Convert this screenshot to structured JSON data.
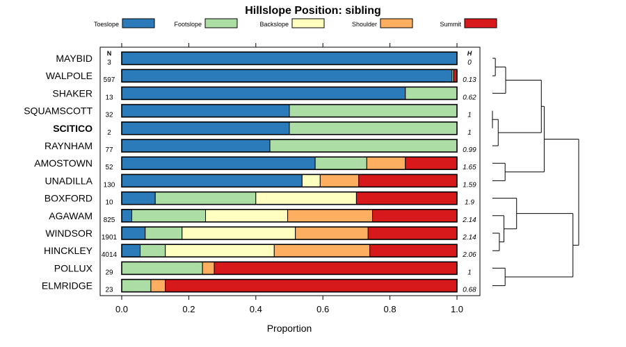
{
  "chart_data": {
    "type": "bar",
    "orientation": "horizontal",
    "stacked": true,
    "title": "Hillslope Position: sibling",
    "xlabel": "Proportion",
    "ylabel": "",
    "xlim": [
      0,
      1
    ],
    "x_ticks": [
      "0.0",
      "0.2",
      "0.4",
      "0.6",
      "0.8",
      "1.0"
    ],
    "n_header": "N",
    "h_header": "H",
    "highlighted_category": "SCITICO",
    "legend": [
      {
        "name": "Toeslope",
        "color": "#2b7bba"
      },
      {
        "name": "Footslope",
        "color": "#abdda4"
      },
      {
        "name": "Backslope",
        "color": "#ffffbf"
      },
      {
        "name": "Shoulder",
        "color": "#fdae61"
      },
      {
        "name": "Summit",
        "color": "#d7191c"
      }
    ],
    "categories": [
      "MAYBID",
      "WALPOLE",
      "SHAKER",
      "SQUAMSCOTT",
      "SCITICO",
      "RAYNHAM",
      "AMOSTOWN",
      "UNADILLA",
      "BOXFORD",
      "AGAWAM",
      "WINDSOR",
      "HINCKLEY",
      "POLLUX",
      "ELMRIDGE"
    ],
    "n": [
      "3",
      "597",
      "13",
      "32",
      "2",
      "77",
      "52",
      "130",
      "10",
      "825",
      "1901",
      "4014",
      "29",
      "23"
    ],
    "h": [
      "0",
      "0.13",
      "0.62",
      "1",
      "1",
      "0.99",
      "1.65",
      "1.59",
      "1.9",
      "2.14",
      "2.14",
      "2.06",
      "1",
      "0.68"
    ],
    "series": [
      {
        "name": "Toeslope",
        "values": [
          1.0,
          0.985,
          0.846,
          0.5,
          0.5,
          0.442,
          0.577,
          0.538,
          0.1,
          0.03,
          0.07,
          0.055,
          0.0,
          0.0
        ]
      },
      {
        "name": "Footslope",
        "values": [
          0.0,
          0.005,
          0.154,
          0.5,
          0.5,
          0.558,
          0.154,
          0.0,
          0.3,
          0.22,
          0.11,
          0.075,
          0.241,
          0.087
        ]
      },
      {
        "name": "Backslope",
        "values": [
          0.0,
          0.0,
          0.0,
          0.0,
          0.0,
          0.0,
          0.0,
          0.054,
          0.3,
          0.245,
          0.338,
          0.325,
          0.0,
          0.0
        ]
      },
      {
        "name": "Shoulder",
        "values": [
          0.0,
          0.0,
          0.0,
          0.0,
          0.0,
          0.0,
          0.115,
          0.115,
          0.0,
          0.253,
          0.217,
          0.285,
          0.035,
          0.043
        ]
      },
      {
        "name": "Summit",
        "values": [
          0.0,
          0.01,
          0.0,
          0.0,
          0.0,
          0.0,
          0.154,
          0.293,
          0.3,
          0.252,
          0.265,
          0.26,
          0.724,
          0.87
        ]
      }
    ],
    "dendrogram": {
      "note": "hierarchical clustering of series rows; leaf indices refer to categories",
      "merges": [
        {
          "left": "leaf:0",
          "right": "leaf:1",
          "height": 0.05
        },
        {
          "left": "leaf:3",
          "right": "leaf:4",
          "height": 0.0
        },
        {
          "left": "m:1",
          "right": "leaf:5",
          "height": 0.1
        },
        {
          "left": "leaf:6",
          "right": "leaf:7",
          "height": 0.22
        },
        {
          "left": "leaf:10",
          "right": "leaf:11",
          "height": 0.12
        },
        {
          "left": "leaf:9",
          "right": "m:4",
          "height": 0.2
        },
        {
          "left": "leaf:12",
          "right": "leaf:13",
          "height": 0.22
        },
        {
          "left": "m:0",
          "right": "leaf:2",
          "height": 0.23
        },
        {
          "left": "leaf:8",
          "right": "m:5",
          "height": 0.42
        },
        {
          "left": "m:8",
          "right": "m:6",
          "height": 1.4
        },
        {
          "left": "m:7",
          "right": "m:2",
          "height": 0.85
        },
        {
          "left": "m:10",
          "right": "m:3",
          "height": 0.9
        },
        {
          "left": "m:11",
          "right": "m:9",
          "height": 1.5
        }
      ]
    }
  }
}
